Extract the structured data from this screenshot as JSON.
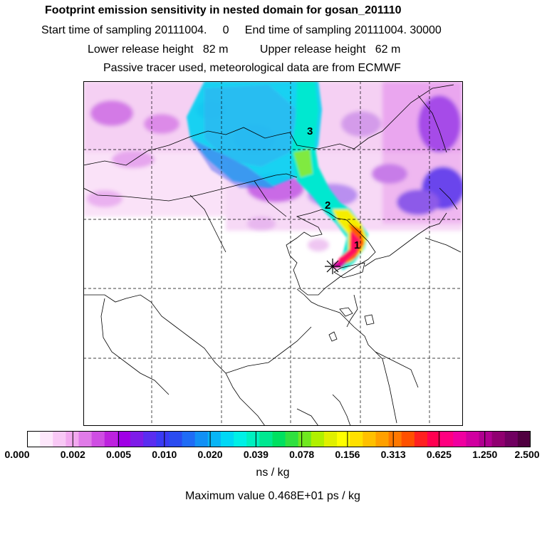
{
  "header": {
    "title": "Footprint emission sensitivity in nested domain for gosan_201110",
    "line_sampling": "Start time of sampling 20111004.     0     End time of sampling 20111004. 30000",
    "line_heights": "Lower release height   82 m          Upper release height   62 m",
    "line_tracer": "Passive tracer used, meteorological data are from ECMWF"
  },
  "map": {
    "trajectory_labels": [
      "3",
      "2",
      "1"
    ],
    "receptor_marker": "asterisk"
  },
  "colorbar": {
    "tick_labels": [
      "0.000",
      "0.002",
      "0.005",
      "0.010",
      "0.020",
      "0.039",
      "0.078",
      "0.156",
      "0.313",
      "0.625",
      "1.250",
      "2.500"
    ],
    "colors": [
      "#ffffff",
      "#fde7fb",
      "#f8c8f5",
      "#f2a8ef",
      "#e07be8",
      "#cf4ee3",
      "#bd22de",
      "#a000e6",
      "#7e1ce8",
      "#5a2df0",
      "#3a3af5",
      "#2a4cf0",
      "#1f6cf5",
      "#1290f5",
      "#09b5f5",
      "#00d8f5",
      "#00f0e6",
      "#00f0c0",
      "#00e890",
      "#00e060",
      "#30e040",
      "#70e820",
      "#b0f000",
      "#e0f000",
      "#ffff00",
      "#ffe000",
      "#ffc000",
      "#ffa000",
      "#ff7800",
      "#ff5000",
      "#ff2020",
      "#ff0050",
      "#ff0080",
      "#f000a0",
      "#d000a0",
      "#b00090",
      "#900070",
      "#700060",
      "#500040"
    ],
    "units": "ns / kg",
    "maximum": "Maximum value  0.468E+01 ps / kg"
  }
}
